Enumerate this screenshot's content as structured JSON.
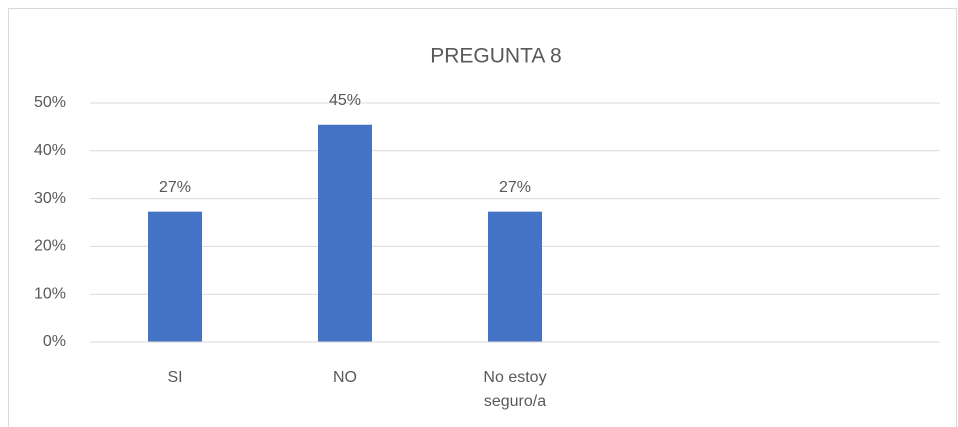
{
  "chart_data": {
    "type": "bar",
    "title": "PREGUNTA 8",
    "categories": [
      "SI",
      "NO",
      "No estoy seguro/a",
      null,
      null
    ],
    "values": [
      27.27,
      45.45,
      27.27,
      null,
      null
    ],
    "value_labels": [
      "27%",
      "45%",
      "27%",
      null,
      null
    ],
    "color": "#4472c4",
    "ylim": [
      0,
      50
    ],
    "yticks": [
      {
        "value": 0,
        "label": "0%"
      },
      {
        "value": 10,
        "label": "10%"
      },
      {
        "value": 20,
        "label": "20%"
      },
      {
        "value": 30,
        "label": "30%"
      },
      {
        "value": 40,
        "label": "40%"
      },
      {
        "value": 50,
        "label": "50%"
      }
    ],
    "grid": true
  }
}
